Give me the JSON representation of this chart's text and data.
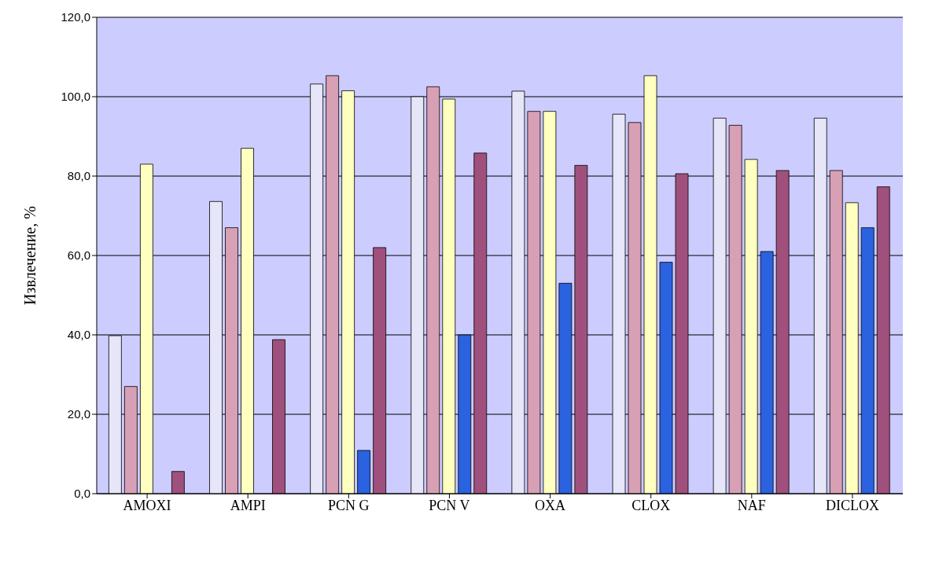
{
  "chart_data": {
    "type": "bar",
    "ylabel": "Извлечение, %",
    "categories": [
      "AMOXI",
      "AMPI",
      "PCN G",
      "PCN V",
      "OXA",
      "CLOX",
      "NAF",
      "DICLOX"
    ],
    "series": [
      {
        "color": "#e6e6f8",
        "values": [
          39.8,
          73.6,
          103.2,
          100,
          101.4,
          95.6,
          94.6,
          94.6
        ]
      },
      {
        "color": "#d8a0b4",
        "values": [
          27,
          67,
          105.3,
          102.5,
          96.3,
          93.5,
          92.8,
          81.4
        ]
      },
      {
        "color": "#ffffc0",
        "values": [
          83,
          87,
          101.5,
          99.4,
          96.3,
          105.3,
          84.2,
          73.3
        ]
      },
      {
        "color": "#2a62e0",
        "values": [
          null,
          null,
          10.9,
          40,
          53,
          58.3,
          61,
          67
        ]
      },
      {
        "color": "#a0507c",
        "values": [
          5.6,
          38.8,
          62,
          85.8,
          82.7,
          80.6,
          81.4,
          77.3
        ]
      }
    ],
    "ylim": [
      0,
      120
    ],
    "yticks": [
      {
        "value": 0,
        "label": "0,0"
      },
      {
        "value": 20,
        "label": "20,0"
      },
      {
        "value": 40,
        "label": "40,0"
      },
      {
        "value": 60,
        "label": "60,0"
      },
      {
        "value": 80,
        "label": "80,0"
      },
      {
        "value": 100,
        "label": "100,0"
      },
      {
        "value": 120,
        "label": "120,0"
      }
    ],
    "grid": "y"
  }
}
